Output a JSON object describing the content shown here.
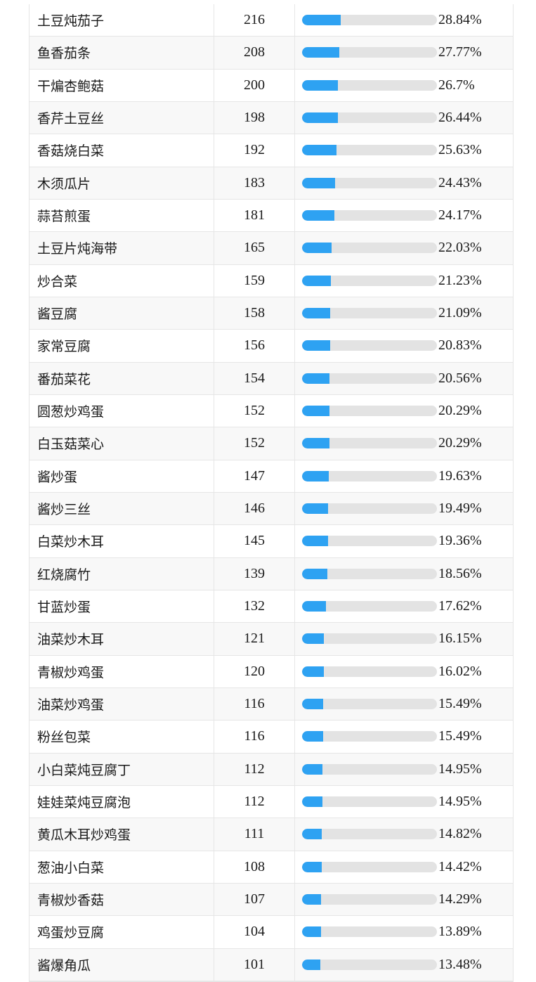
{
  "colors": {
    "bar_fill": "#2ea2f2",
    "bar_track": "#e3e3e3",
    "grid": "#e6e6e6",
    "alt_row": "#f8f8f8"
  },
  "rows": [
    {
      "name": "土豆炖茄子",
      "count": "216",
      "pct": "28.84%",
      "ratio": 0.2884
    },
    {
      "name": "鱼香茄条",
      "count": "208",
      "pct": "27.77%",
      "ratio": 0.2777
    },
    {
      "name": "干煸杏鲍菇",
      "count": "200",
      "pct": "26.7%",
      "ratio": 0.267
    },
    {
      "name": "香芹土豆丝",
      "count": "198",
      "pct": "26.44%",
      "ratio": 0.2644
    },
    {
      "name": "香菇烧白菜",
      "count": "192",
      "pct": "25.63%",
      "ratio": 0.2563
    },
    {
      "name": "木须瓜片",
      "count": "183",
      "pct": "24.43%",
      "ratio": 0.2443
    },
    {
      "name": "蒜苔煎蛋",
      "count": "181",
      "pct": "24.17%",
      "ratio": 0.2417
    },
    {
      "name": "土豆片炖海带",
      "count": "165",
      "pct": "22.03%",
      "ratio": 0.2203
    },
    {
      "name": "炒合菜",
      "count": "159",
      "pct": "21.23%",
      "ratio": 0.2123
    },
    {
      "name": "酱豆腐",
      "count": "158",
      "pct": "21.09%",
      "ratio": 0.2109
    },
    {
      "name": "家常豆腐",
      "count": "156",
      "pct": "20.83%",
      "ratio": 0.2083
    },
    {
      "name": "番茄菜花",
      "count": "154",
      "pct": "20.56%",
      "ratio": 0.2056
    },
    {
      "name": "圆葱炒鸡蛋",
      "count": "152",
      "pct": "20.29%",
      "ratio": 0.2029
    },
    {
      "name": "白玉菇菜心",
      "count": "152",
      "pct": "20.29%",
      "ratio": 0.2029
    },
    {
      "name": "酱炒蛋",
      "count": "147",
      "pct": "19.63%",
      "ratio": 0.1963
    },
    {
      "name": "酱炒三丝",
      "count": "146",
      "pct": "19.49%",
      "ratio": 0.1949
    },
    {
      "name": "白菜炒木耳",
      "count": "145",
      "pct": "19.36%",
      "ratio": 0.1936
    },
    {
      "name": "红烧腐竹",
      "count": "139",
      "pct": "18.56%",
      "ratio": 0.1856
    },
    {
      "name": "甘蓝炒蛋",
      "count": "132",
      "pct": "17.62%",
      "ratio": 0.1762
    },
    {
      "name": "油菜炒木耳",
      "count": "121",
      "pct": "16.15%",
      "ratio": 0.1615
    },
    {
      "name": "青椒炒鸡蛋",
      "count": "120",
      "pct": "16.02%",
      "ratio": 0.1602
    },
    {
      "name": "油菜炒鸡蛋",
      "count": "116",
      "pct": "15.49%",
      "ratio": 0.1549
    },
    {
      "name": "粉丝包菜",
      "count": "116",
      "pct": "15.49%",
      "ratio": 0.1549
    },
    {
      "name": "小白菜炖豆腐丁",
      "count": "112",
      "pct": "14.95%",
      "ratio": 0.1495
    },
    {
      "name": "娃娃菜炖豆腐泡",
      "count": "112",
      "pct": "14.95%",
      "ratio": 0.1495
    },
    {
      "name": "黄瓜木耳炒鸡蛋",
      "count": "111",
      "pct": "14.82%",
      "ratio": 0.1482
    },
    {
      "name": "葱油小白菜",
      "count": "108",
      "pct": "14.42%",
      "ratio": 0.1442
    },
    {
      "name": "青椒炒香菇",
      "count": "107",
      "pct": "14.29%",
      "ratio": 0.1429
    },
    {
      "name": "鸡蛋炒豆腐",
      "count": "104",
      "pct": "13.89%",
      "ratio": 0.1389
    },
    {
      "name": "酱爆角瓜",
      "count": "101",
      "pct": "13.48%",
      "ratio": 0.1348
    }
  ]
}
